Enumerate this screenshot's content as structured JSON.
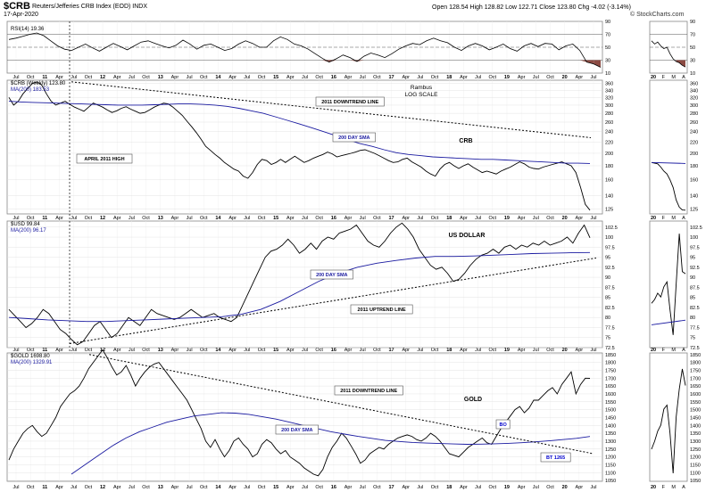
{
  "header": {
    "symbol": "$CRB",
    "description": "Reuters/Jefferies CRB Index (EOD)  INDX",
    "date": "17-Apr-2020",
    "ohlc": "Open 128.54  High 128.82  Low 122.71  Close 123.80  Chg -4.02 (-3.14%)",
    "credit": "© StockCharts.com"
  },
  "colors": {
    "price": "#000000",
    "sma": "#1a1aa0",
    "rsi_fill": "#8b4a42",
    "grid": "#dddddd",
    "annotation": "#0000cc"
  },
  "chart_data": [
    {
      "type": "line",
      "panel": "rsi",
      "legend": "RSI(14) 19.36",
      "ylim": [
        10,
        90
      ],
      "ticks": [
        90,
        70,
        50,
        30,
        10
      ],
      "levels": [
        70,
        50,
        30
      ],
      "series": [
        {
          "values": [
            62,
            64,
            67,
            70,
            72,
            68,
            60,
            52,
            47,
            45,
            50,
            55,
            49,
            44,
            50,
            56,
            51,
            46,
            52,
            58,
            60,
            56,
            52,
            49,
            53,
            61,
            55,
            47,
            53,
            55,
            50,
            45,
            48,
            55,
            60,
            56,
            50,
            50,
            60,
            66,
            62,
            55,
            52,
            47,
            40,
            33,
            27,
            32,
            38,
            34,
            28,
            36,
            41,
            38,
            34,
            40,
            47,
            52,
            56,
            54,
            60,
            64,
            60,
            57,
            50,
            45,
            52,
            56,
            52,
            46,
            50,
            55,
            48,
            44,
            52,
            56,
            51,
            56,
            55,
            46,
            52,
            55,
            45,
            27,
            24,
            19
          ]
        }
      ]
    },
    {
      "type": "line",
      "panel": "crb",
      "legend": "$CRB (Weekly) 123.80",
      "legend_sma": "MA(200) 183.53",
      "scale": "log",
      "ylim": [
        120,
        370
      ],
      "ticks": [
        360,
        340,
        320,
        300,
        280,
        260,
        240,
        220,
        200,
        180,
        160,
        140,
        125
      ],
      "series": [
        {
          "values": [
            320,
            300,
            310,
            330,
            345,
            360,
            365,
            355,
            330,
            310,
            300,
            305,
            310,
            302,
            295,
            290,
            285,
            295,
            305,
            300,
            295,
            288,
            282,
            286,
            292,
            296,
            290,
            285,
            280,
            282,
            288,
            295,
            300,
            305,
            303,
            295,
            285,
            275,
            262,
            250,
            238,
            225,
            212,
            205,
            198,
            192,
            185,
            180,
            175,
            172,
            165,
            162,
            170,
            182,
            190,
            188,
            182,
            185,
            190,
            185,
            190,
            195,
            190,
            185,
            188,
            192,
            195,
            198,
            202,
            199,
            194,
            196,
            198,
            200,
            202,
            205,
            206,
            203,
            200,
            196,
            192,
            188,
            185,
            186,
            190,
            192,
            186,
            182,
            178,
            172,
            168,
            165,
            175,
            182,
            185,
            180,
            176,
            180,
            183,
            178,
            174,
            170,
            172,
            170,
            168,
            172,
            175,
            178,
            182,
            186,
            183,
            178,
            176,
            175,
            178,
            180,
            182,
            184,
            186,
            183,
            180,
            170,
            150,
            130,
            123.8
          ]
        },
        {
          "name": "200 DAY SMA",
          "values": [
            310,
            308,
            307,
            306,
            305,
            304,
            303,
            302,
            301,
            300,
            300,
            300,
            301,
            302,
            303,
            303,
            302,
            300,
            297,
            292,
            286,
            280,
            272,
            264,
            256,
            248,
            240,
            232,
            224,
            217,
            212,
            206,
            201,
            198,
            196,
            194,
            193,
            192,
            191,
            190,
            190,
            189,
            188,
            187,
            186,
            185,
            184,
            184,
            183.53
          ]
        }
      ],
      "annotations": [
        "Rambus",
        "LOG SCALE",
        "2011 DOWNTREND LINE",
        "CRB",
        "200 DAY SMA",
        "APRIL 2011 HIGH"
      ]
    },
    {
      "type": "line",
      "panel": "usd",
      "legend": "$USD 99.84",
      "legend_sma": "MA(200) 96.17",
      "ylim": [
        72.5,
        104
      ],
      "ticks": [
        102.5,
        100,
        97.5,
        95,
        92.5,
        90,
        87.5,
        85,
        82.5,
        80,
        77.5,
        75,
        72.5
      ],
      "series": [
        {
          "values": [
            82,
            80.5,
            79,
            77.5,
            78.5,
            80,
            82,
            81,
            79,
            77,
            76,
            74.5,
            73.2,
            74,
            76,
            78,
            79,
            77,
            75,
            76,
            78,
            80,
            79,
            78,
            80,
            82,
            81,
            80.5,
            80,
            79.5,
            80,
            81,
            82,
            81,
            80,
            80.5,
            81,
            80,
            79.5,
            79,
            80,
            83,
            86,
            89,
            92,
            95,
            96.5,
            97,
            98,
            99.5,
            98,
            96,
            97,
            98.5,
            97,
            99,
            100,
            99.5,
            101,
            101.5,
            102,
            103,
            101,
            99,
            98,
            97.5,
            99,
            101,
            102.5,
            103.5,
            102,
            100,
            97,
            95,
            93,
            92,
            92.5,
            91,
            89,
            89.5,
            91,
            93,
            94.5,
            95.5,
            96,
            97,
            96,
            97.5,
            98,
            97,
            98,
            97.5,
            98.5,
            98,
            99,
            98,
            98.5,
            99,
            100,
            98.5,
            101,
            103,
            99.84
          ]
        },
        {
          "name": "200 DAY SMA",
          "values": [
            80,
            79.7,
            79.4,
            79.2,
            79,
            79,
            79.2,
            79.4,
            79.6,
            79.8,
            80,
            80.2,
            80.8,
            82,
            84,
            86.5,
            89,
            91,
            92.5,
            93.5,
            94.2,
            94.8,
            95.2,
            95.2,
            95.3,
            95.5,
            95.7,
            95.9,
            96,
            96.1,
            96.17
          ]
        }
      ],
      "annotations": [
        "US DOLLAR",
        "200 DAY SMA",
        "2011 UPTREND LINE"
      ]
    },
    {
      "type": "line",
      "panel": "gold",
      "legend": "$GOLD 1698.80",
      "legend_sma": "MA(200) 1329.91",
      "ylim": [
        1045,
        1860
      ],
      "ticks": [
        1850,
        1800,
        1750,
        1700,
        1650,
        1600,
        1550,
        1500,
        1450,
        1400,
        1350,
        1300,
        1250,
        1200,
        1150,
        1100,
        1050
      ],
      "series": [
        {
          "values": [
            1180,
            1250,
            1300,
            1350,
            1380,
            1400,
            1360,
            1330,
            1350,
            1400,
            1450,
            1520,
            1560,
            1600,
            1620,
            1650,
            1700,
            1760,
            1800,
            1840,
            1880,
            1830,
            1770,
            1720,
            1740,
            1780,
            1720,
            1650,
            1700,
            1740,
            1770,
            1790,
            1800,
            1760,
            1720,
            1680,
            1640,
            1600,
            1560,
            1500,
            1440,
            1380,
            1300,
            1260,
            1310,
            1250,
            1200,
            1240,
            1300,
            1320,
            1280,
            1250,
            1200,
            1220,
            1280,
            1310,
            1290,
            1250,
            1220,
            1240,
            1200,
            1180,
            1160,
            1130,
            1110,
            1090,
            1080,
            1120,
            1200,
            1260,
            1300,
            1350,
            1320,
            1270,
            1220,
            1160,
            1180,
            1220,
            1240,
            1260,
            1250,
            1280,
            1300,
            1320,
            1330,
            1340,
            1330,
            1310,
            1300,
            1320,
            1350,
            1330,
            1300,
            1260,
            1220,
            1210,
            1200,
            1230,
            1260,
            1280,
            1300,
            1320,
            1290,
            1280,
            1330,
            1380,
            1420,
            1460,
            1500,
            1520,
            1480,
            1510,
            1560,
            1560,
            1590,
            1620,
            1640,
            1600,
            1660,
            1700,
            1740,
            1600,
            1660,
            1700,
            1698.8
          ]
        },
        {
          "name": "200 DAY SMA",
          "values": [
            1090,
            1150,
            1210,
            1270,
            1320,
            1360,
            1390,
            1420,
            1440,
            1460,
            1470,
            1480,
            1478,
            1470,
            1455,
            1440,
            1420,
            1400,
            1380,
            1360,
            1345,
            1330,
            1318,
            1305,
            1298,
            1292,
            1288,
            1285,
            1282,
            1280,
            1281,
            1283,
            1286,
            1290,
            1296,
            1302,
            1310,
            1318,
            1329.91
          ]
        }
      ],
      "annotations": [
        "2011 DOWNTREND LINE",
        "GOLD",
        "200 DAY SMA",
        "BO",
        "BT 1265"
      ]
    },
    {
      "type": "line",
      "panel": "zoom",
      "x_axis": [
        "20",
        "F",
        "M",
        "A"
      ],
      "series": [
        {
          "name": "RSI",
          "values": [
            60,
            55,
            58,
            52,
            48,
            50,
            40,
            32,
            28,
            26,
            22,
            19.36
          ]
        },
        {
          "name": "CRB",
          "values": [
            185,
            184,
            183,
            178,
            172,
            168,
            160,
            150,
            135,
            127,
            124,
            123.8
          ]
        },
        {
          "name": "USD",
          "values": [
            97.5,
            97.8,
            98.3,
            98,
            98.8,
            99.2,
            97,
            95,
            99,
            103,
            100,
            99.84
          ]
        },
        {
          "name": "GOLD",
          "values": [
            1540,
            1560,
            1585,
            1600,
            1640,
            1650,
            1580,
            1480,
            1620,
            1690,
            1740,
            1698.8
          ]
        }
      ]
    }
  ],
  "x_axis": {
    "labels": [
      "Jul",
      "Oct",
      "11",
      "Apr",
      "Jul",
      "Oct",
      "12",
      "Apr",
      "Jul",
      "Oct",
      "13",
      "Apr",
      "Jul",
      "Oct",
      "14",
      "Apr",
      "Jul",
      "Oct",
      "15",
      "Apr",
      "Jul",
      "Oct",
      "16",
      "Apr",
      "Jul",
      "Oct",
      "17",
      "Apr",
      "Jul",
      "Oct",
      "18",
      "Apr",
      "Jul",
      "Oct",
      "19",
      "Apr",
      "Jul",
      "Oct",
      "20",
      "Apr",
      "Jul"
    ],
    "bold_labels": [
      "11",
      "12",
      "13",
      "14",
      "15",
      "16",
      "17",
      "18",
      "19",
      "20"
    ]
  }
}
